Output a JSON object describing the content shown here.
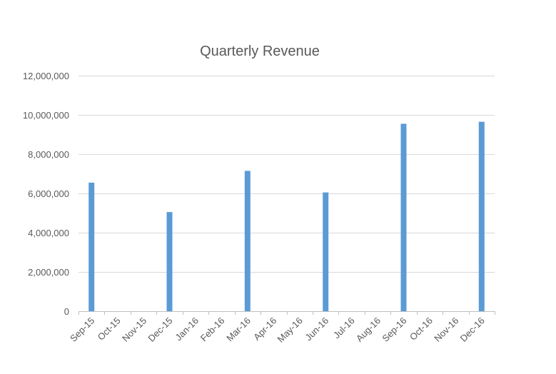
{
  "chart_data": {
    "type": "bar",
    "title": "Quarterly Revenue",
    "xlabel": "",
    "ylabel": "",
    "categories": [
      "Sep-15",
      "Oct-15",
      "Nov-15",
      "Dec-15",
      "Jan-16",
      "Feb-16",
      "Mar-16",
      "Apr-16",
      "May-16",
      "Jun-16",
      "Jul-16",
      "Aug-16",
      "Sep-16",
      "Oct-16",
      "Nov-16",
      "Dec-16"
    ],
    "values": [
      6550000,
      null,
      null,
      5050000,
      null,
      null,
      7150000,
      null,
      null,
      6050000,
      null,
      null,
      9550000,
      null,
      null,
      9650000
    ],
    "y_tick_values": [
      0,
      2000000,
      4000000,
      6000000,
      8000000,
      10000000,
      12000000
    ],
    "y_tick_labels": [
      "0",
      "2,000,000",
      "4,000,000",
      "6,000,000",
      "8,000,000",
      "10,000,000",
      "12,000,000"
    ],
    "ylim": [
      0,
      12000000
    ],
    "grid": true,
    "legend": "none",
    "bar_color": "#5B9BD5",
    "grid_color": "#D9D9D9",
    "axis_color": "#BFBFBF",
    "text_color": "#595959"
  }
}
